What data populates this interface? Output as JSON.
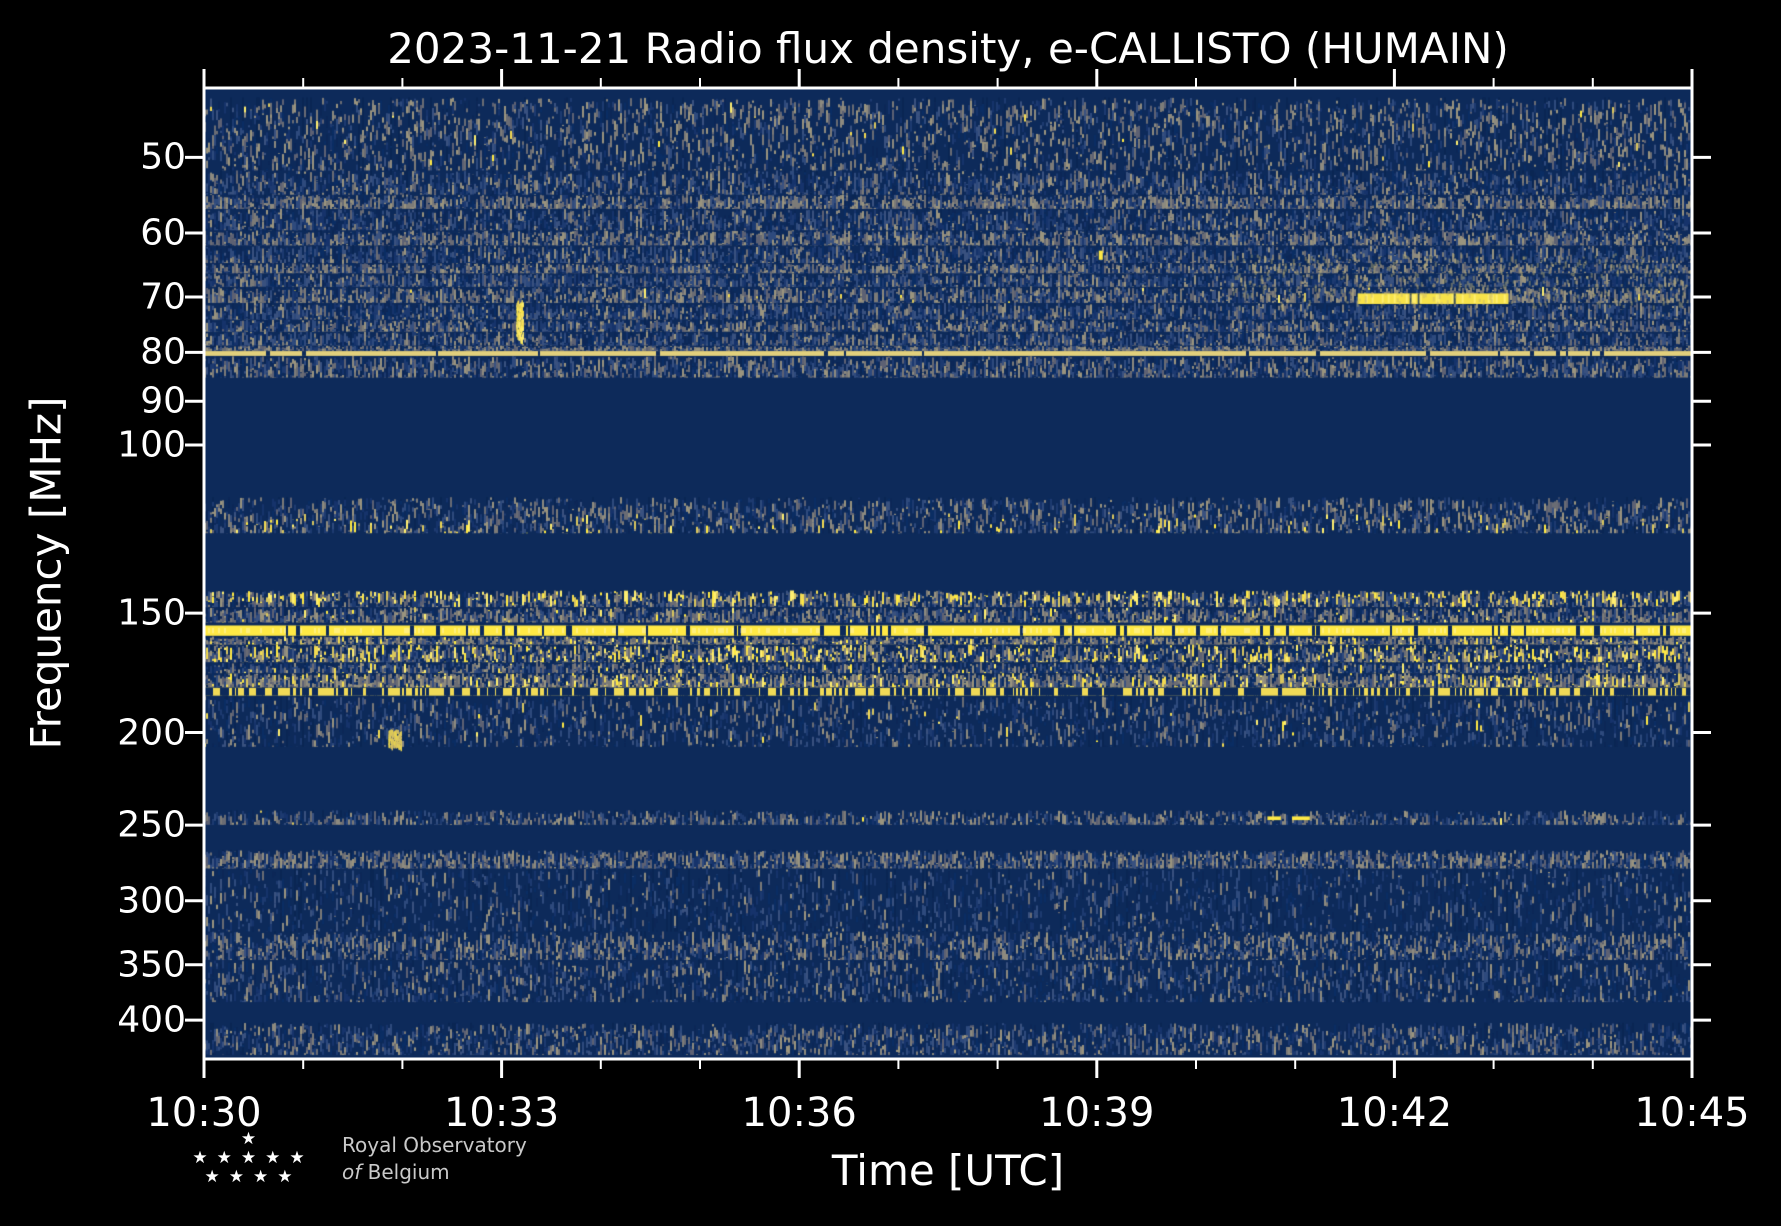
{
  "figure": {
    "title": "2023-11-21 Radio flux density, e-CALLISTO (HUMAIN)",
    "xlabel": "Time [UTC]",
    "ylabel": "Frequency [MHz]",
    "background": "#000000",
    "text_color": "#ffffff"
  },
  "logo": {
    "line1": "Royal Observatory",
    "line2_italic": "of",
    "line2_rest": "Belgium",
    "star_rows": [
      1,
      5,
      4
    ]
  },
  "chart_data": {
    "type": "heatmap",
    "title": "2023-11-21 Radio flux density, e-CALLISTO (HUMAIN)",
    "date": "2023-11-21",
    "instrument": "e-CALLISTO (HUMAIN)",
    "xlabel": "Time [UTC]",
    "ylabel": "Frequency [MHz]",
    "x_axis": {
      "start_utc": "10:30",
      "end_utc": "10:45",
      "major_ticks": [
        "10:30",
        "10:33",
        "10:36",
        "10:39",
        "10:42",
        "10:45"
      ],
      "major_tick_minutes": 3,
      "minor_tick_minutes": 1,
      "span_minutes": 15
    },
    "y_axis": {
      "scale": "log",
      "inverted": true,
      "unit": "MHz",
      "ticks": [
        50,
        60,
        70,
        80,
        90,
        100,
        150,
        200,
        250,
        300,
        350,
        400
      ],
      "range": [
        42.3,
        439.3
      ]
    },
    "colormap": {
      "name": "cividis-like blue/gray/yellow",
      "low": "#0d2a5a",
      "mid": "#7c7b78",
      "high": "#ffe945"
    },
    "palette": {
      "background_navy": "#0d2a5a",
      "blues": [
        "#0a2d63",
        "#1d3a70",
        "#2e4a7d",
        "#16336b",
        "#39517f",
        "#0c2757"
      ],
      "grays": [
        "#7c7b78",
        "#8d8a7f",
        "#6a6c74",
        "#9a947e",
        "#5d6173"
      ],
      "yellows": [
        "#ffe945",
        "#f2da52",
        "#d9c65e",
        "#ffee70"
      ],
      "soft_yellows": [
        "#dcc75f",
        "#cdb964",
        "#e8d44f"
      ]
    },
    "bands": [
      {
        "f": [
          42.3,
          43.3
        ],
        "kind": "quiet"
      },
      {
        "f": [
          43.3,
          51.6
        ],
        "kind": "noise",
        "d": 4.5,
        "g": 0.5,
        "y": 0.01,
        "yb": 0
      },
      {
        "f": [
          51.6,
          54.7
        ],
        "kind": "noise",
        "d": 3.0,
        "g": 0.28,
        "y": 0,
        "yb": 0
      },
      {
        "f": [
          54.7,
          56.6
        ],
        "kind": "noise",
        "d": 3.5,
        "g": 0.5,
        "y": 0,
        "yb": 0
      },
      {
        "f": [
          56.6,
          59.6
        ],
        "kind": "noise",
        "d": 3.0,
        "g": 0.24,
        "y": 0,
        "yb": 0
      },
      {
        "f": [
          59.6,
          61.8
        ],
        "kind": "noise",
        "d": 3.5,
        "g": 0.48,
        "y": 0,
        "yb": 0
      },
      {
        "f": [
          61.8,
          64.5
        ],
        "kind": "noise",
        "d": 3.0,
        "g": 0.22,
        "y": 0,
        "yb": 0
      },
      {
        "f": [
          64.5,
          66.1
        ],
        "kind": "noise",
        "d": 3.5,
        "g": 0.48,
        "y": 0,
        "yb": 0
      },
      {
        "f": [
          66.1,
          68.3
        ],
        "kind": "noise",
        "d": 3.0,
        "g": 0.24,
        "y": 0,
        "yb": 0
      },
      {
        "f": [
          68.3,
          71.0
        ],
        "kind": "noise",
        "d": 3.5,
        "g": 0.48,
        "y": 0.01,
        "yb": 0
      },
      {
        "f": [
          71.0,
          73.9
        ],
        "kind": "noise",
        "d": 3.0,
        "g": 0.24,
        "y": 0,
        "yb": 0
      },
      {
        "f": [
          73.9,
          76.1
        ],
        "kind": "noise",
        "d": 3.0,
        "g": 0.42,
        "y": 0,
        "yb": 0
      },
      {
        "f": [
          76.1,
          78.7
        ],
        "kind": "noise",
        "d": 3.0,
        "g": 0.24,
        "y": 0,
        "yb": 0
      },
      {
        "f": [
          78.7,
          79.7
        ],
        "kind": "noise",
        "d": 3.5,
        "g": 0.5,
        "y": 0,
        "yb": 0
      },
      {
        "f": [
          80.7,
          85.0
        ],
        "kind": "noise",
        "d": 3.2,
        "g": 0.4,
        "y": 0,
        "yb": 0
      },
      {
        "f": [
          85.0,
          113.4
        ],
        "kind": "quiet"
      },
      {
        "f": [
          113.4,
          123.7
        ],
        "kind": "noise",
        "d": 3.2,
        "g": 0.36,
        "y": 0.05,
        "yb": 1
      },
      {
        "f": [
          123.7,
          142.0
        ],
        "kind": "quiet"
      },
      {
        "f": [
          142.0,
          147.8
        ],
        "kind": "noise",
        "d": 3.2,
        "g": 0.34,
        "y": 0.16,
        "yb": -1
      },
      {
        "f": [
          147.8,
          153.4
        ],
        "kind": "noise",
        "d": 3.2,
        "g": 0.44,
        "y": 0.04,
        "yb": 0
      },
      {
        "f": [
          158.6,
          161.7
        ],
        "kind": "noise",
        "d": 3.5,
        "g": 0.48,
        "y": 0.09,
        "yb": 0
      },
      {
        "f": [
          161.7,
          168.8
        ],
        "kind": "noise",
        "d": 3.2,
        "g": 0.3,
        "y": 0.26,
        "yb": 0
      },
      {
        "f": [
          168.8,
          173.3
        ],
        "kind": "noise",
        "d": 3.0,
        "g": 0.26,
        "y": 0.04,
        "yb": 0
      },
      {
        "f": [
          173.3,
          179.3
        ],
        "kind": "noise",
        "d": 4.5,
        "g": 0.52,
        "y": 0.17,
        "yb": 0
      },
      {
        "f": [
          183.2,
          207.0
        ],
        "kind": "noise",
        "d": 3.0,
        "g": 0.28,
        "y": 0.015,
        "yb": 0
      },
      {
        "f": [
          207.0,
          241.2
        ],
        "kind": "quiet"
      },
      {
        "f": [
          241.2,
          249.8
        ],
        "kind": "noise",
        "d": 1.5,
        "g": 0.42,
        "y": 0.008,
        "yb": 0
      },
      {
        "f": [
          249.8,
          265.5
        ],
        "kind": "quiet"
      },
      {
        "f": [
          265.5,
          277.5
        ],
        "kind": "noise",
        "d": 3.5,
        "g": 0.44,
        "y": 0,
        "yb": 0
      },
      {
        "f": [
          277.5,
          323.0
        ],
        "kind": "noise",
        "d": 2.6,
        "g": 0.2,
        "y": 0,
        "yb": 0
      },
      {
        "f": [
          323.0,
          346.0
        ],
        "kind": "noise",
        "d": 3.5,
        "g": 0.42,
        "y": 0,
        "yb": 0
      },
      {
        "f": [
          346.0,
          383.0
        ],
        "kind": "noise",
        "d": 2.8,
        "g": 0.28,
        "y": 0,
        "yb": 0
      },
      {
        "f": [
          383.0,
          402.7
        ],
        "kind": "quiet"
      },
      {
        "f": [
          402.7,
          435.0
        ],
        "kind": "noise",
        "d": 3.0,
        "g": 0.33,
        "y": 0,
        "yb": 0
      },
      {
        "f": [
          435.0,
          439.3
        ],
        "kind": "quiet"
      }
    ],
    "rfi_lines": [
      {
        "label": "continuous pale RFI line at 80 MHz",
        "f": [
          79.75,
          80.68
        ],
        "color": "#e2d07c",
        "duty": 0.985,
        "bright": false
      },
      {
        "label": "strong RFI band ~155-158 MHz",
        "f": [
          154.5,
          158.4
        ],
        "color": "#ffe945",
        "duty": 0.93,
        "bright": true
      },
      {
        "label": "dashed RFI line ~180-183 MHz",
        "f": [
          179.6,
          183.0
        ],
        "color": "#f0da57",
        "duty": 0.55,
        "bright": false
      }
    ],
    "events": [
      {
        "label": "short burst ~71-77 MHz near 10:33",
        "kind": "burst",
        "t": 3.15,
        "dur": 0.07,
        "f": [
          70.5,
          77.5
        ],
        "soft": false
      },
      {
        "label": "faint burst ~200-206 MHz near 10:32",
        "kind": "burst",
        "t": 1.86,
        "dur": 0.13,
        "f": [
          198.5,
          206.5
        ],
        "soft": true
      },
      {
        "label": "bright 70 MHz emission 10:41.6-10:43.1",
        "kind": "streak",
        "t": 11.63,
        "dur": 1.52,
        "f": [
          69.4,
          71.2
        ]
      },
      {
        "label": "yellow dashes ~246 MHz near 10:41",
        "kind": "dots",
        "t": 10.72,
        "dur": 0.45,
        "f": [
          244.8,
          247.0
        ]
      },
      {
        "label": "small dot ~63 MHz near 10:39",
        "kind": "dots",
        "t": 9.02,
        "dur": 0.06,
        "f": [
          62.6,
          64.0
        ]
      },
      {
        "label": "enhanced 63-71 MHz noise after 10:40",
        "kind": "wash",
        "t": 10.35,
        "dur": 4.65,
        "f": [
          63.0,
          71.5
        ]
      }
    ]
  }
}
